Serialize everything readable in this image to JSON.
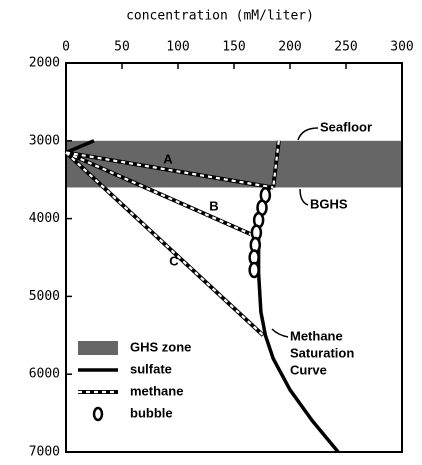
{
  "chart_data": {
    "type": "line",
    "title": "concentration (mM/liter)",
    "xlim": [
      0,
      300
    ],
    "xticks": [
      0,
      50,
      100,
      150,
      200,
      250,
      300
    ],
    "ylim": [
      2000,
      7000
    ],
    "yticks": [
      2000,
      3000,
      4000,
      5000,
      6000,
      7000
    ],
    "y_inverted": true,
    "ghs_zone": {
      "name": "GHS zone",
      "top": 3000,
      "bottom": 3600,
      "color": "#666666"
    },
    "series": [
      {
        "name": "sulfate",
        "style": "solid",
        "color": "#000000",
        "x": [
          25,
          0,
          null,
          182,
          175,
          172,
          172,
          174,
          178,
          185,
          200,
          220,
          243
        ],
        "y": [
          3000,
          3150,
          null,
          3600,
          3800,
          4200,
          4700,
          5200,
          5500,
          5800,
          6200,
          6600,
          7000
        ]
      },
      {
        "name": "methane",
        "style": "dashed",
        "color": "#000000",
        "x": [
          190,
          185,
          null,
          0,
          185,
          null,
          0,
          165,
          null,
          0,
          176
        ],
        "y": [
          3000,
          3600,
          null,
          3150,
          3600,
          null,
          3150,
          4200,
          null,
          3150,
          5500
        ]
      },
      {
        "name": "bubble",
        "style": "marker",
        "color": "#000000",
        "x": [
          178,
          175,
          172,
          170,
          169,
          168,
          168
        ],
        "y": [
          3700,
          3860,
          4020,
          4180,
          4340,
          4500,
          4660
        ]
      }
    ],
    "annotations": [
      {
        "text": [
          "A"
        ]
      },
      {
        "text": [
          "B"
        ]
      },
      {
        "text": [
          "C"
        ]
      },
      {
        "text": [
          "Seafloor"
        ]
      },
      {
        "text": [
          "BGHS"
        ]
      },
      {
        "text": [
          "Methane",
          "Saturation",
          "Curve"
        ]
      }
    ]
  }
}
